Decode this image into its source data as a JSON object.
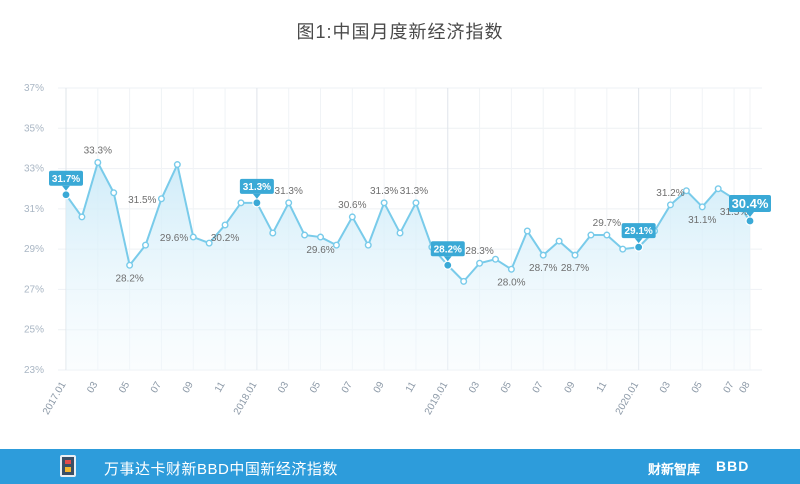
{
  "title": "图1:中国月度新经济指数",
  "footer": {
    "title": "万事达卡财新BBD中国新经济指数",
    "brand_main": "财新智库",
    "brand_bbd": "BBD"
  },
  "colors": {
    "line": "#79cbea",
    "fill": "#dff2fb",
    "highlight": "#3aa9d6",
    "footer": "#2d9cdb"
  },
  "chart_data": {
    "type": "area",
    "title": "图1:中国月度新经济指数",
    "xlabel": "",
    "ylabel": "",
    "ylim": [
      23,
      37
    ],
    "y_ticks": [
      "23%",
      "25%",
      "27%",
      "29%",
      "31%",
      "33%",
      "35%",
      "37%"
    ],
    "y_tick_values": [
      23,
      25,
      27,
      29,
      31,
      33,
      35,
      37
    ],
    "x": [
      "2017.01",
      "2017.02",
      "2017.03",
      "2017.04",
      "2017.05",
      "2017.06",
      "2017.07",
      "2017.08",
      "2017.09",
      "2017.10",
      "2017.11",
      "2017.12",
      "2018.01",
      "2018.02",
      "2018.03",
      "2018.04",
      "2018.05",
      "2018.06",
      "2018.07",
      "2018.08",
      "2018.09",
      "2018.10",
      "2018.11",
      "2018.12",
      "2019.01",
      "2019.02",
      "2019.03",
      "2019.04",
      "2019.05",
      "2019.06",
      "2019.07",
      "2019.08",
      "2019.09",
      "2019.10",
      "2019.11",
      "2019.12",
      "2020.01",
      "2020.02",
      "2020.03",
      "2020.04",
      "2020.05",
      "2020.06",
      "2020.07",
      "2020.08"
    ],
    "x_tick_labels": [
      "2017.01",
      "03",
      "05",
      "07",
      "09",
      "11",
      "2018.01",
      "03",
      "05",
      "07",
      "09",
      "11",
      "2019.01",
      "03",
      "05",
      "07",
      "09",
      "11",
      "2020.01",
      "03",
      "05",
      "07",
      "08"
    ],
    "x_tick_indices": [
      0,
      2,
      4,
      6,
      8,
      10,
      12,
      14,
      16,
      18,
      20,
      22,
      24,
      26,
      28,
      30,
      32,
      34,
      36,
      38,
      40,
      42,
      43
    ],
    "values": [
      31.7,
      30.6,
      33.3,
      31.8,
      28.2,
      29.2,
      31.5,
      33.2,
      29.6,
      29.3,
      30.2,
      31.3,
      31.3,
      29.8,
      31.3,
      29.7,
      29.6,
      29.2,
      30.6,
      29.2,
      31.3,
      29.8,
      31.3,
      29.1,
      28.2,
      27.4,
      28.3,
      28.5,
      28.0,
      29.9,
      28.7,
      29.4,
      28.7,
      29.7,
      29.7,
      29.0,
      29.1,
      29.9,
      31.2,
      31.9,
      31.1,
      32.0,
      31.5,
      30.4
    ],
    "data_labels": [
      {
        "index": 2,
        "text": "33.3%",
        "pos": "above"
      },
      {
        "index": 4,
        "text": "28.2%",
        "pos": "below"
      },
      {
        "index": 6,
        "text": "31.5%",
        "pos": "left"
      },
      {
        "index": 8,
        "text": "29.6%",
        "pos": "left"
      },
      {
        "index": 10,
        "text": "30.2%",
        "pos": "below"
      },
      {
        "index": 14,
        "text": "31.3%",
        "pos": "above"
      },
      {
        "index": 16,
        "text": "29.6%",
        "pos": "below"
      },
      {
        "index": 18,
        "text": "30.6%",
        "pos": "above"
      },
      {
        "index": 20,
        "text": "31.3%",
        "pos": "above"
      },
      {
        "index": 22,
        "text": "31.3%",
        "pos": "above-left"
      },
      {
        "index": 26,
        "text": "28.3%",
        "pos": "above"
      },
      {
        "index": 28,
        "text": "28.0%",
        "pos": "below"
      },
      {
        "index": 30,
        "text": "28.7%",
        "pos": "below"
      },
      {
        "index": 32,
        "text": "28.7%",
        "pos": "below"
      },
      {
        "index": 34,
        "text": "29.7%",
        "pos": "above"
      },
      {
        "index": 38,
        "text": "31.2%",
        "pos": "above"
      },
      {
        "index": 40,
        "text": "31.1%",
        "pos": "below"
      },
      {
        "index": 42,
        "text": "31.5%",
        "pos": "below"
      }
    ],
    "highlights": [
      {
        "index": 0,
        "text": "31.7%"
      },
      {
        "index": 12,
        "text": "31.3%"
      },
      {
        "index": 24,
        "text": "28.2%"
      },
      {
        "index": 36,
        "text": "29.1%"
      },
      {
        "index": 43,
        "text": "30.4%",
        "big": true
      }
    ],
    "grid": true,
    "legend": "none"
  }
}
